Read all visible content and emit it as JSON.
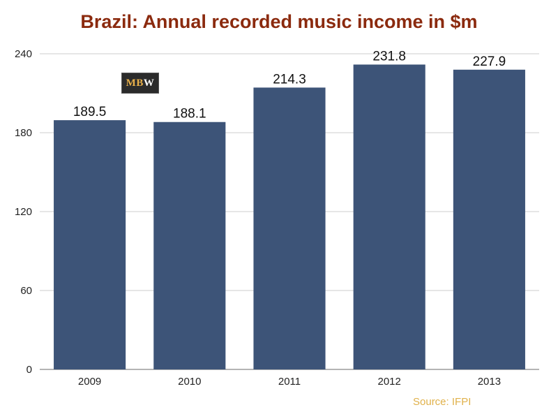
{
  "chart_data": {
    "type": "bar",
    "title": "Brazil: Annual recorded music income in $m",
    "categories": [
      "2009",
      "2010",
      "2011",
      "2012",
      "2013"
    ],
    "values": [
      189.5,
      188.1,
      214.3,
      231.8,
      227.9
    ],
    "data_labels": [
      "189.5",
      "188.1",
      "214.3",
      "231.8",
      "227.9"
    ],
    "xlabel": "",
    "ylabel": "",
    "ylim": [
      0,
      240
    ],
    "yticks": [
      0,
      60,
      120,
      180,
      240
    ],
    "grid": true,
    "bar_color": "#3d5478",
    "source": "Source: IFPI"
  },
  "logo": {
    "part1": "MB",
    "part2": "W"
  },
  "colors": {
    "title": "#8b2a0e",
    "bar": "#3d5478",
    "gridline": "#cccccc",
    "source": "#e0b14a"
  }
}
